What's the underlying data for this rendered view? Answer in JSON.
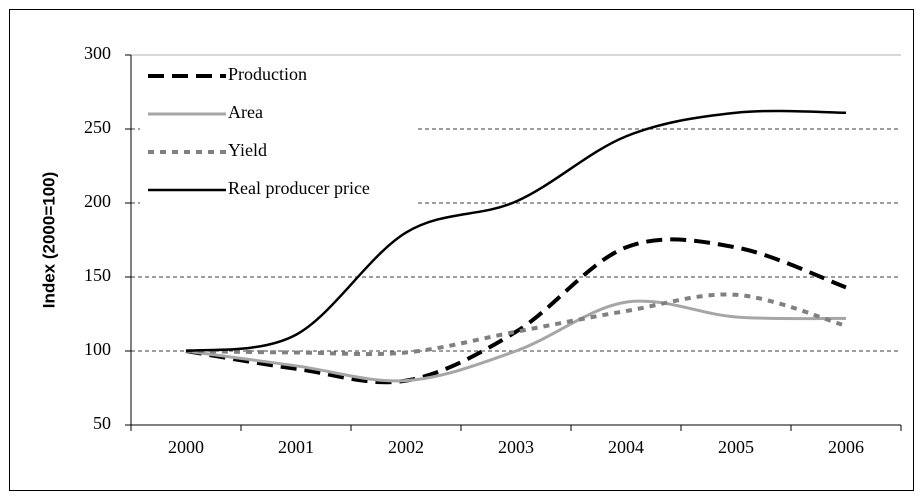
{
  "chart_data": {
    "type": "line",
    "y_label": "Index (2000=100)",
    "categories": [
      "2000",
      "2001",
      "2002",
      "2003",
      "2004",
      "2005",
      "2006"
    ],
    "series": [
      {
        "name": "Production",
        "color": "#000000",
        "line_style": "long-dash",
        "values": [
          100,
          88,
          80,
          113,
          170,
          170,
          143
        ]
      },
      {
        "name": "Area",
        "color": "#a6a6a6",
        "line_style": "solid",
        "values": [
          100,
          90,
          80,
          100,
          133,
          123,
          122
        ]
      },
      {
        "name": "Yield",
        "color": "#808080",
        "line_style": "short-dash",
        "values": [
          100,
          99,
          99,
          113,
          127,
          138,
          117
        ]
      },
      {
        "name": "Real producer price",
        "color": "#000000",
        "line_style": "solid",
        "values": [
          100,
          111,
          180,
          201,
          245,
          261,
          261
        ]
      }
    ],
    "ylim": [
      50,
      300
    ],
    "yticks": [
      50,
      100,
      150,
      200,
      250,
      300
    ],
    "grid": true,
    "legend": "upper-left",
    "smooth": true
  }
}
